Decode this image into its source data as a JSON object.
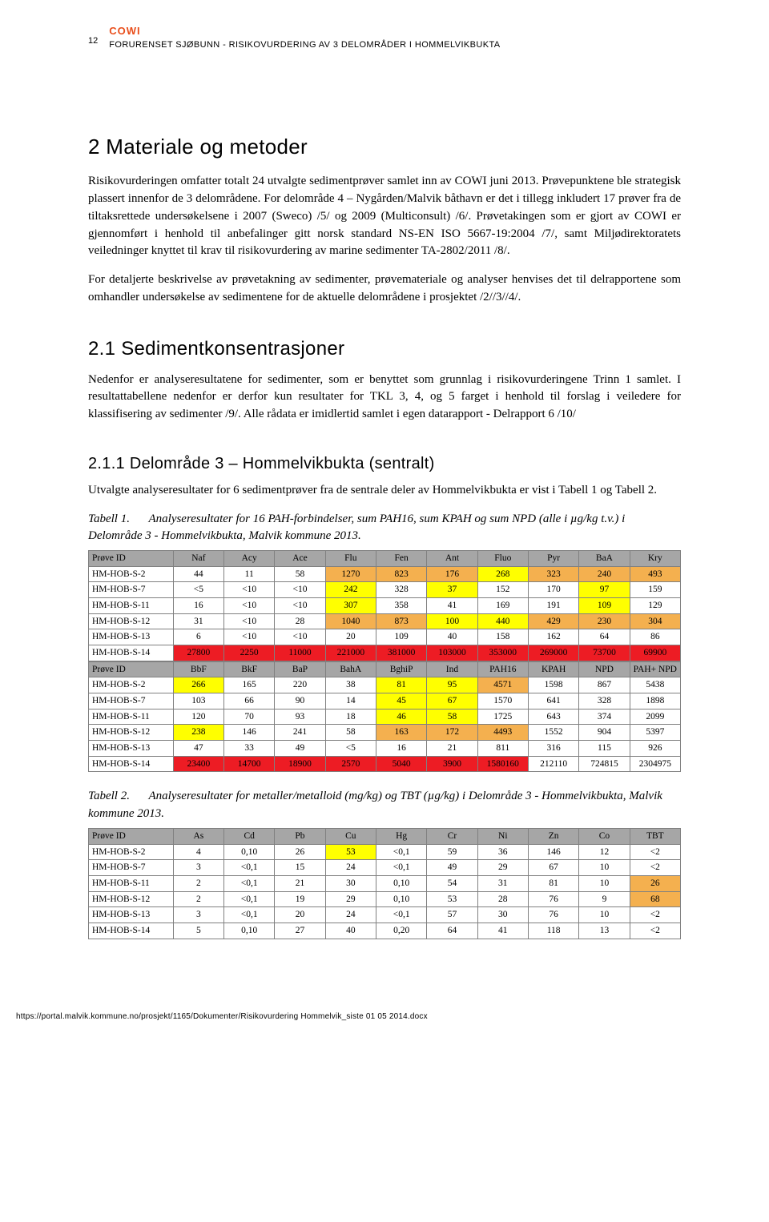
{
  "header": {
    "page_number": "12",
    "brand": "COWI",
    "title": "FORURENSET SJØBUNN - RISIKOVURDERING AV 3 DELOMRÅDER I HOMMELVIKBUKTA"
  },
  "section2": {
    "heading": "2    Materiale og metoder",
    "para1": "Risikovurderingen omfatter totalt 24 utvalgte sedimentprøver samlet inn av COWI juni 2013. Prøvepunktene ble strategisk plassert innenfor de 3 delområdene. For delområde 4 – Nygården/Malvik båthavn er det i tillegg inkludert 17 prøver  fra de tiltaksrettede undersøkelsene i 2007 (Sweco) /5/ og 2009 (Multiconsult) /6/. Prøvetakingen som er gjort av COWI er gjennomført i henhold til anbefalinger gitt norsk standard NS-EN ISO 5667-19:2004 /7/, samt Miljødirektoratets veiledninger knyttet til krav til risikovurdering av marine sedimenter TA-2802/2011 /8/.",
    "para2": "For detaljerte beskrivelse av prøvetakning av sedimenter, prøvemateriale og analyser henvises det til delrapportene som omhandler undersøkelse av sedimentene for de aktuelle delområdene i prosjektet /2//3//4/."
  },
  "section21": {
    "heading": "2.1    Sedimentkonsentrasjoner",
    "para": "Nedenfor er analyseresultatene for sedimenter, som er benyttet som grunnlag i risikovurderingene Trinn 1 samlet. I resultattabellene nedenfor er derfor kun resultater for TKL 3, 4, og 5 farget i henhold til forslag i veiledere for klassifisering av sedimenter /9/. Alle rådata er imidlertid samlet i egen datarapport - Delrapport 6 /10/"
  },
  "section211": {
    "heading": "2.1.1 Delområde 3 – Hommelvikbukta (sentralt)",
    "para": "Utvalgte analyseresultater for 6 sedimentprøver fra de sentrale deler av Hommelvikbukta er vist i Tabell 1 og Tabell 2."
  },
  "table1": {
    "type": "table",
    "caption_label": "Tabell 1.",
    "caption": "Analyseresultater for 16 PAH-forbindelser, sum PAH16, sum KPAH og sum NPD (alle i µg/kg t.v.) i Delområde 3 - Hommelvikbukta, Malvik kommune 2013.",
    "col_widths_pct": [
      14.3,
      8.57,
      8.57,
      8.57,
      8.57,
      8.57,
      8.57,
      8.57,
      8.57,
      8.57,
      8.57
    ],
    "colors": {
      "header_bg": "#a6a6a6",
      "yellow": "#ffff00",
      "orange": "#f4b04f",
      "red": "#ed1c24",
      "border": "#808080"
    },
    "columns1": [
      "Prøve ID",
      "Naf",
      "Acy",
      "Ace",
      "Flu",
      "Fen",
      "Ant",
      "Fluo",
      "Pyr",
      "BaA",
      "Kry"
    ],
    "rows1": [
      {
        "id": "HM-HOB-S-2",
        "cells": [
          "44",
          "11",
          "58",
          "1270",
          "823",
          "176",
          "268",
          "323",
          "240",
          "493"
        ],
        "hl": [
          "",
          "",
          "",
          "o",
          "o",
          "o",
          "y",
          "o",
          "o",
          "o"
        ]
      },
      {
        "id": "HM-HOB-S-7",
        "cells": [
          "<5",
          "<10",
          "<10",
          "242",
          "328",
          "37",
          "152",
          "170",
          "97",
          "159"
        ],
        "hl": [
          "",
          "",
          "",
          "y",
          "",
          "y",
          "",
          "",
          "y",
          ""
        ]
      },
      {
        "id": "HM-HOB-S-11",
        "cells": [
          "16",
          "<10",
          "<10",
          "307",
          "358",
          "41",
          "169",
          "191",
          "109",
          "129"
        ],
        "hl": [
          "",
          "",
          "",
          "y",
          "",
          "",
          "",
          "",
          "y",
          ""
        ]
      },
      {
        "id": "HM-HOB-S-12",
        "cells": [
          "31",
          "<10",
          "28",
          "1040",
          "873",
          "100",
          "440",
          "429",
          "230",
          "304"
        ],
        "hl": [
          "",
          "",
          "",
          "o",
          "o",
          "y",
          "y",
          "o",
          "o",
          "o"
        ]
      },
      {
        "id": "HM-HOB-S-13",
        "cells": [
          "6",
          "<10",
          "<10",
          "20",
          "109",
          "40",
          "158",
          "162",
          "64",
          "86"
        ],
        "hl": [
          "",
          "",
          "",
          "",
          "",
          "",
          "",
          "",
          "",
          ""
        ]
      },
      {
        "id": "HM-HOB-S-14",
        "cells": [
          "27800",
          "2250",
          "11000",
          "221000",
          "381000",
          "103000",
          "353000",
          "269000",
          "73700",
          "69900"
        ],
        "hl": [
          "r",
          "r",
          "r",
          "r",
          "r",
          "r",
          "r",
          "r",
          "r",
          "r"
        ]
      }
    ],
    "columns2": [
      "Prøve ID",
      "BbF",
      "BkF",
      "BaP",
      "BahA",
      "BghiP",
      "Ind",
      "PAH16",
      "KPAH",
      "NPD",
      "PAH+ NPD"
    ],
    "rows2": [
      {
        "id": "HM-HOB-S-2",
        "cells": [
          "266",
          "165",
          "220",
          "38",
          "81",
          "95",
          "4571",
          "1598",
          "867",
          "5438"
        ],
        "hl": [
          "y",
          "",
          "",
          "",
          "y",
          "y",
          "o",
          "",
          "",
          ""
        ]
      },
      {
        "id": "HM-HOB-S-7",
        "cells": [
          "103",
          "66",
          "90",
          "14",
          "45",
          "67",
          "1570",
          "641",
          "328",
          "1898"
        ],
        "hl": [
          "",
          "",
          "",
          "",
          "y",
          "y",
          "",
          "",
          "",
          ""
        ]
      },
      {
        "id": "HM-HOB-S-11",
        "cells": [
          "120",
          "70",
          "93",
          "18",
          "46",
          "58",
          "1725",
          "643",
          "374",
          "2099"
        ],
        "hl": [
          "",
          "",
          "",
          "",
          "y",
          "y",
          "",
          "",
          "",
          ""
        ]
      },
      {
        "id": "HM-HOB-S-12",
        "cells": [
          "238",
          "146",
          "241",
          "58",
          "163",
          "172",
          "4493",
          "1552",
          "904",
          "5397"
        ],
        "hl": [
          "y",
          "",
          "",
          "",
          "o",
          "o",
          "o",
          "",
          "",
          ""
        ]
      },
      {
        "id": "HM-HOB-S-13",
        "cells": [
          "47",
          "33",
          "49",
          "<5",
          "16",
          "21",
          "811",
          "316",
          "115",
          "926"
        ],
        "hl": [
          "",
          "",
          "",
          "",
          "",
          "",
          "",
          "",
          "",
          ""
        ]
      },
      {
        "id": "HM-HOB-S-14",
        "cells": [
          "23400",
          "14700",
          "18900",
          "2570",
          "5040",
          "3900",
          "1580160",
          "212110",
          "724815",
          "2304975"
        ],
        "hl": [
          "r",
          "r",
          "r",
          "r",
          "r",
          "r",
          "r",
          "",
          "",
          ""
        ]
      }
    ]
  },
  "table2": {
    "type": "table",
    "caption_label": "Tabell 2.",
    "caption": "Analyseresultater for metaller/metalloid (mg/kg) og TBT (µg/kg) i Delområde 3 - Hommelvikbukta, Malvik kommune 2013.",
    "col_widths_pct": [
      14.3,
      8.57,
      8.57,
      8.57,
      8.57,
      8.57,
      8.57,
      8.57,
      8.57,
      8.57,
      8.57
    ],
    "colors": {
      "header_bg": "#a6a6a6",
      "yellow": "#ffff00",
      "orange": "#f4b04f",
      "border": "#808080"
    },
    "columns": [
      "Prøve ID",
      "As",
      "Cd",
      "Pb",
      "Cu",
      "Hg",
      "Cr",
      "Ni",
      "Zn",
      "Co",
      "TBT"
    ],
    "rows": [
      {
        "id": "HM-HOB-S-2",
        "cells": [
          "4",
          "0,10",
          "26",
          "53",
          "<0,1",
          "59",
          "36",
          "146",
          "12",
          "<2"
        ],
        "hl": [
          "",
          "",
          "",
          "y",
          "",
          "",
          "",
          "",
          "",
          ""
        ]
      },
      {
        "id": "HM-HOB-S-7",
        "cells": [
          "3",
          "<0,1",
          "15",
          "24",
          "<0,1",
          "49",
          "29",
          "67",
          "10",
          "<2"
        ],
        "hl": [
          "",
          "",
          "",
          "",
          "",
          "",
          "",
          "",
          "",
          ""
        ]
      },
      {
        "id": "HM-HOB-S-11",
        "cells": [
          "2",
          "<0,1",
          "21",
          "30",
          "0,10",
          "54",
          "31",
          "81",
          "10",
          "26"
        ],
        "hl": [
          "",
          "",
          "",
          "",
          "",
          "",
          "",
          "",
          "",
          "o"
        ]
      },
      {
        "id": "HM-HOB-S-12",
        "cells": [
          "2",
          "<0,1",
          "19",
          "29",
          "0,10",
          "53",
          "28",
          "76",
          "9",
          "68"
        ],
        "hl": [
          "",
          "",
          "",
          "",
          "",
          "",
          "",
          "",
          "",
          "o"
        ]
      },
      {
        "id": "HM-HOB-S-13",
        "cells": [
          "3",
          "<0,1",
          "20",
          "24",
          "<0,1",
          "57",
          "30",
          "76",
          "10",
          "<2"
        ],
        "hl": [
          "",
          "",
          "",
          "",
          "",
          "",
          "",
          "",
          "",
          ""
        ]
      },
      {
        "id": "HM-HOB-S-14",
        "cells": [
          "5",
          "0,10",
          "27",
          "40",
          "0,20",
          "64",
          "41",
          "118",
          "13",
          "<2"
        ],
        "hl": [
          "",
          "",
          "",
          "",
          "",
          "",
          "",
          "",
          "",
          ""
        ]
      }
    ]
  },
  "footer": "https://portal.malvik.kommune.no/prosjekt/1165/Dokumenter/Risikovurdering Hommelvik_siste 01 05 2014.docx"
}
